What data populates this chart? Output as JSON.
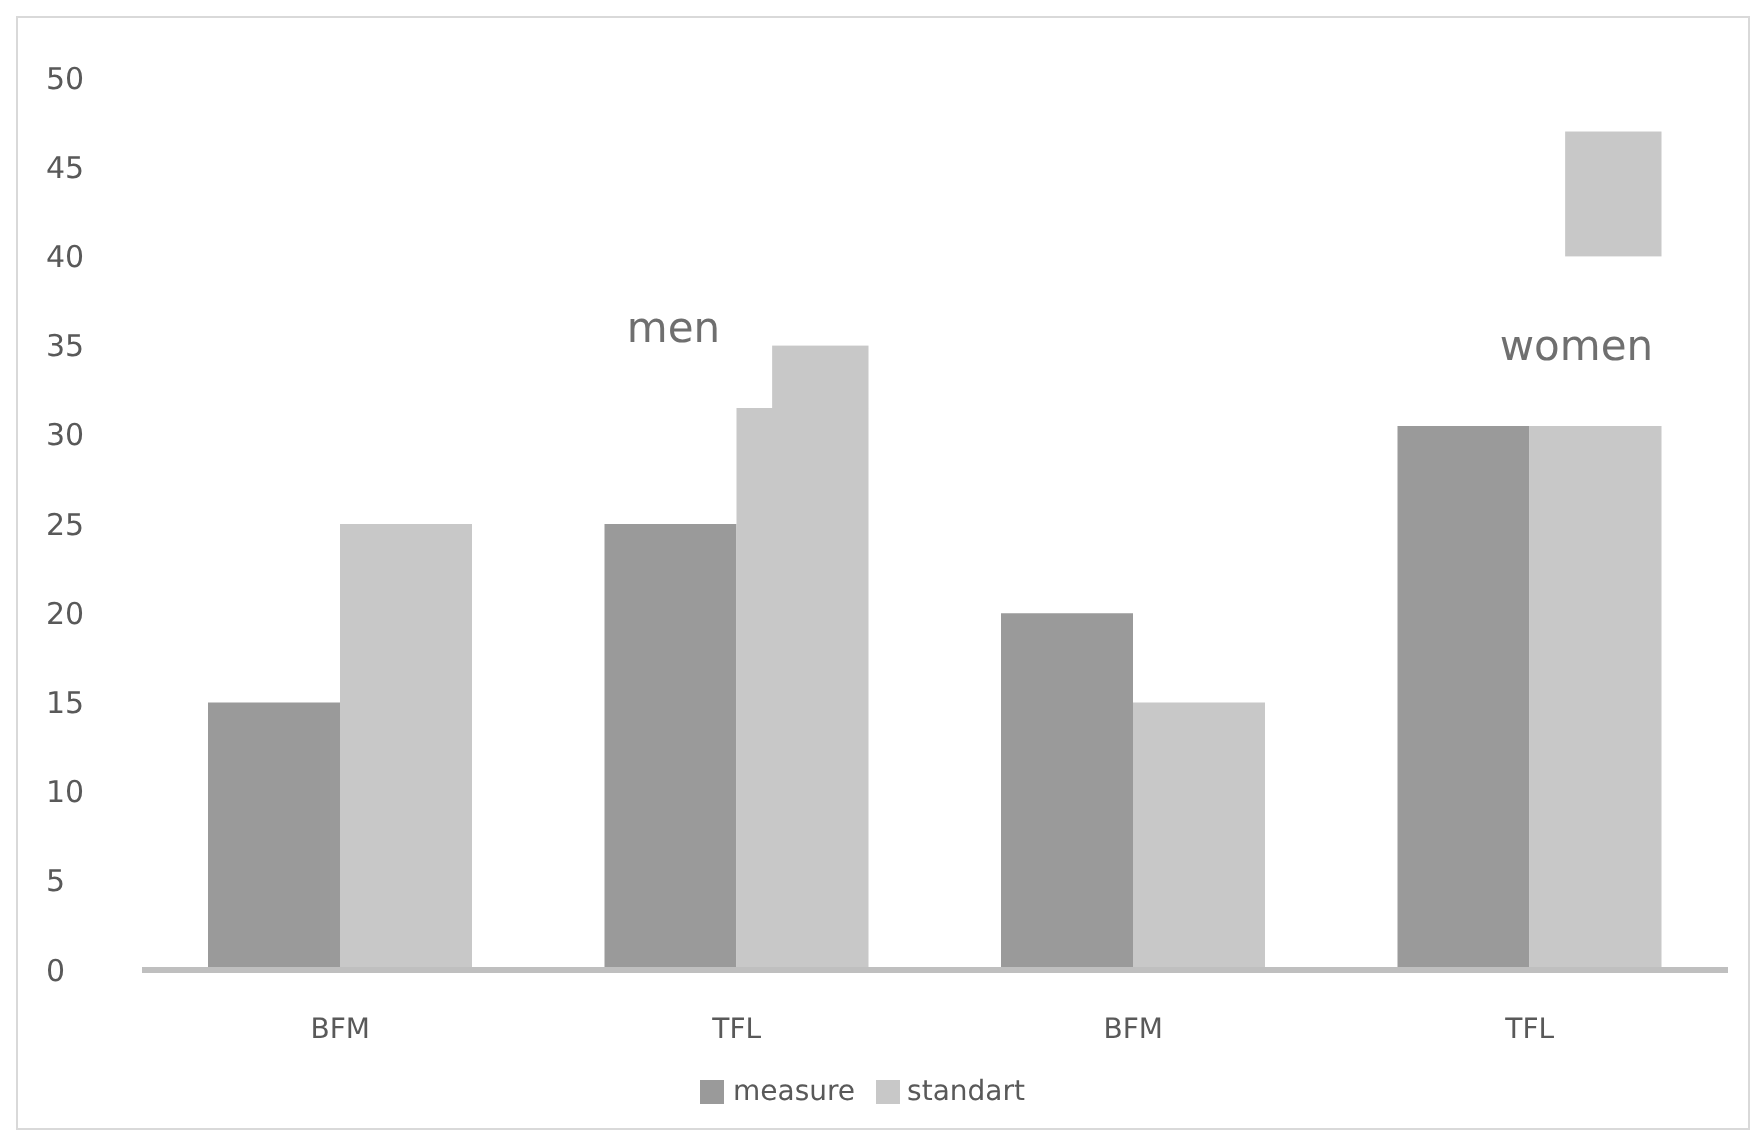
{
  "chart_data": {
    "type": "bar",
    "categories": [
      "BFM",
      "TFL",
      "BFM",
      "TFL"
    ],
    "series": [
      {
        "name": "measure",
        "color": "#9a9a9a",
        "values": [
          15,
          25,
          20,
          30.5
        ]
      },
      {
        "name": "standart",
        "color": "#c8c8c8",
        "values": [
          25,
          31.5,
          15,
          30.5
        ]
      },
      {
        "color": "#c8c8c8",
        "values": [
          null,
          3.5,
          null,
          7
        ],
        "base": [
          null,
          31.5,
          null,
          40
        ]
      }
    ],
    "annotations": [
      "men",
      "women"
    ],
    "ylim": [
      0,
      50
    ],
    "yticks": [
      0,
      5,
      10,
      15,
      20,
      25,
      30,
      35,
      40,
      45,
      50
    ],
    "grid": false,
    "legend": "bottom"
  }
}
